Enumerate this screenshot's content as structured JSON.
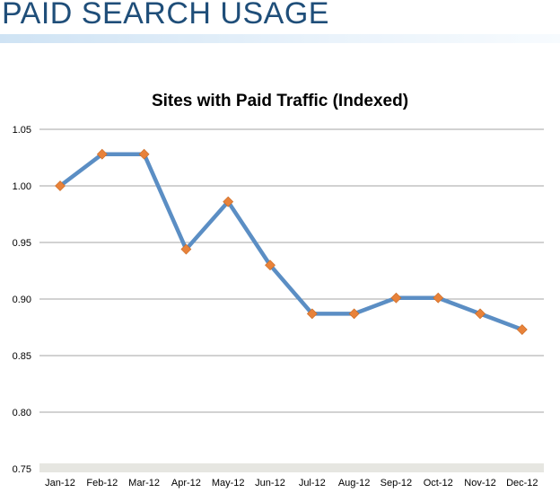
{
  "page": {
    "title": "PAID SEARCH USAGE"
  },
  "colors": {
    "title": "#1f4e79",
    "line": "#5b8ec4",
    "marker": "#e8823a",
    "grid": "#a6a6a6",
    "axis_band": "#e6e6e1"
  },
  "chart_data": {
    "type": "line",
    "title": "Sites with Paid Traffic (Indexed)",
    "xlabel": "",
    "ylabel": "",
    "categories": [
      "Jan-12",
      "Feb-12",
      "Mar-12",
      "Apr-12",
      "May-12",
      "Jun-12",
      "Jul-12",
      "Aug-12",
      "Sep-12",
      "Oct-12",
      "Nov-12",
      "Dec-12"
    ],
    "series": [
      {
        "values": [
          1.0,
          1.028,
          1.028,
          0.944,
          0.986,
          0.93,
          0.887,
          0.887,
          0.901,
          0.901,
          0.887,
          0.873
        ]
      }
    ],
    "ylim": [
      0.75,
      1.05
    ],
    "yticks": [
      "0.75",
      "0.80",
      "0.85",
      "0.90",
      "0.95",
      "1.00",
      "1.05"
    ],
    "grid": true,
    "marker": "diamond",
    "legend": "none"
  }
}
